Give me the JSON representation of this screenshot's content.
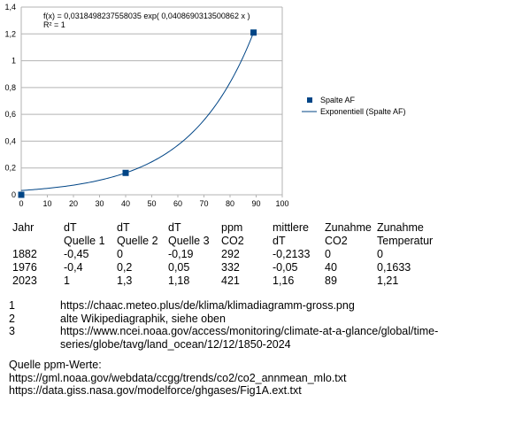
{
  "chart_data": {
    "type": "scatter",
    "title": "",
    "xlabel": "",
    "ylabel": "",
    "xlim": [
      0,
      100
    ],
    "ylim": [
      0,
      1.4
    ],
    "x_ticks": [
      0,
      10,
      20,
      30,
      40,
      50,
      60,
      70,
      80,
      90,
      100
    ],
    "y_ticks": [
      "0",
      "0,2",
      "0,4",
      "0,6",
      "0,8",
      "1",
      "1,2",
      "1,4"
    ],
    "y_tick_values": [
      0,
      0.2,
      0.4,
      0.6,
      0.8,
      1.0,
      1.2,
      1.4
    ],
    "grid": "horizontal",
    "legend_position": "right",
    "series": [
      {
        "name": "Spalte AF",
        "kind": "points",
        "color": "#004586",
        "points": [
          [
            0,
            0
          ],
          [
            40,
            0.1633
          ],
          [
            89,
            1.21
          ]
        ]
      },
      {
        "name": "Exponentiell (Spalte AF)",
        "kind": "trendline",
        "color": "#004586",
        "a": 0.0318498237558035,
        "b": 0.0408690313500862,
        "x_range": [
          0,
          89
        ]
      }
    ],
    "equation": "f(x) = 0,0318498237558035 exp( 0,0408690313500862 x )",
    "r_squared": "R² = 1"
  },
  "table": {
    "header1": [
      "Jahr",
      "dT",
      "dT",
      "dT",
      "ppm",
      "mittlere",
      "Zunahme",
      "Zunahme"
    ],
    "header2": [
      "",
      "Quelle 1",
      "Quelle 2",
      "Quelle 3",
      "CO2",
      "dT",
      "CO2",
      "Temperatur"
    ],
    "rows": [
      [
        "1882",
        "-0,45",
        "0",
        "-0,19",
        "292",
        "-0,2133",
        "0",
        "0"
      ],
      [
        "1976",
        "-0,4",
        "0,2",
        "0,05",
        "332",
        "-0,05",
        "40",
        "0,1633"
      ],
      [
        "2023",
        "1",
        "1,3",
        "1,18",
        "421",
        "1,16",
        "89",
        "1,21"
      ]
    ]
  },
  "notes": [
    {
      "num": "1",
      "text": "https://chaac.meteo.plus/de/klima/klimadiagramm-gross.png"
    },
    {
      "num": "2",
      "text": "alte Wikipediagraphik, siehe oben"
    },
    {
      "num": "3",
      "text": "https://www.ncei.noaa.gov/access/monitoring/climate-at-a-glance/global/time-series/globe/tavg/land_ocean/12/12/1850-2024"
    }
  ],
  "sources": {
    "heading": "Quelle ppm-Werte:",
    "lines": [
      "https://gml.noaa.gov/webdata/ccgg/trends/co2/co2_annmean_mlo.txt",
      "https://data.giss.nasa.gov/modelforce/ghgases/Fig1A.ext.txt"
    ]
  }
}
